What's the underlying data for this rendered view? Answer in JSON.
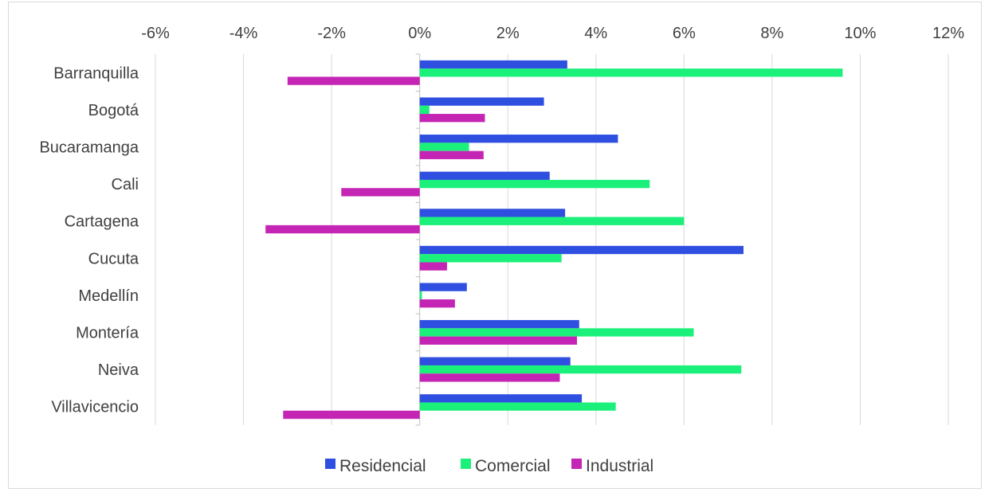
{
  "chart_data": {
    "type": "bar",
    "orientation": "horizontal",
    "categories": [
      "Barranquilla",
      "Bogotá",
      "Bucaramanga",
      "Cali",
      "Cartagena",
      "Cucuta",
      "Medellín",
      "Montería",
      "Neiva",
      "Villavicencio"
    ],
    "series": [
      {
        "name": "Residencial",
        "color": "#2e4fe0",
        "values": [
          3.35,
          2.82,
          4.5,
          2.95,
          3.3,
          7.35,
          1.07,
          3.62,
          3.42,
          3.68
        ]
      },
      {
        "name": "Comercial",
        "color": "#1af07a",
        "values": [
          9.6,
          0.22,
          1.12,
          5.22,
          6.0,
          3.22,
          0.05,
          6.22,
          7.3,
          4.45
        ]
      },
      {
        "name": "Industrial",
        "color": "#c425b4",
        "values": [
          -3.0,
          1.48,
          1.45,
          -1.78,
          -3.5,
          0.62,
          0.8,
          3.57,
          3.18,
          -3.1
        ]
      }
    ],
    "xlim": [
      -6,
      12
    ],
    "xticks": [
      "-6%",
      "-4%",
      "-2%",
      "0%",
      "2%",
      "4%",
      "6%",
      "8%",
      "10%",
      "12%"
    ],
    "xtick_values": [
      -6,
      -4,
      -2,
      0,
      2,
      4,
      6,
      8,
      10,
      12
    ],
    "x_axis_position": "top",
    "grid": true,
    "legend": {
      "position": "bottom",
      "entries": [
        "Residencial",
        "Comercial",
        "Industrial"
      ]
    },
    "title": "",
    "xlabel": "",
    "ylabel": ""
  }
}
